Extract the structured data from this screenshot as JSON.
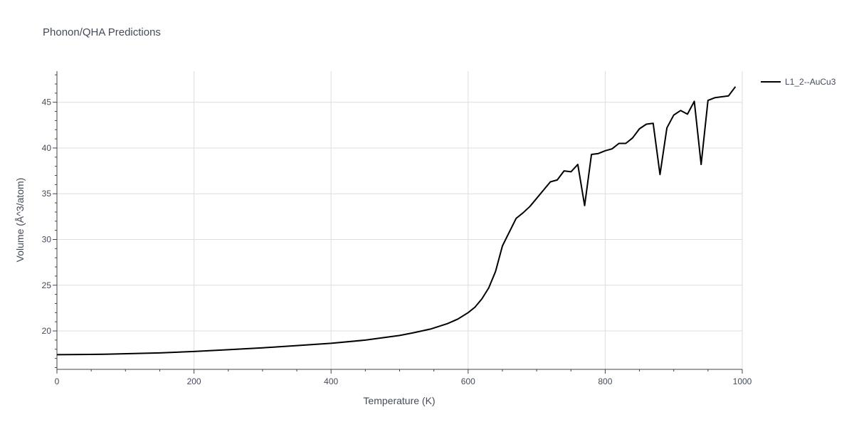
{
  "chart_data": {
    "type": "line",
    "title": "Phonon/QHA Predictions",
    "xlabel": "Temperature (K)",
    "ylabel": "Volume (Å^3/atom)",
    "xlim": [
      0,
      1000
    ],
    "ylim": [
      15.8,
      48.4
    ],
    "x_ticks": [
      0,
      200,
      400,
      600,
      800,
      1000
    ],
    "y_ticks": [
      20,
      25,
      30,
      35,
      40,
      45
    ],
    "x_tick_labels": [
      "0",
      "200",
      "400",
      "600",
      "800",
      "1000"
    ],
    "y_tick_labels": [
      "20",
      "25",
      "30",
      "35",
      "40",
      "45"
    ],
    "grid": true,
    "legend_position": "top-right",
    "series": [
      {
        "name": "L1_2--AuCu3",
        "color": "#000000",
        "x": [
          0,
          70,
          150,
          200,
          250,
          300,
          350,
          400,
          450,
          500,
          520,
          545,
          570,
          585,
          600,
          610,
          620,
          630,
          640,
          650,
          660,
          670,
          680,
          690,
          700,
          710,
          720,
          730,
          740,
          750,
          760,
          770,
          780,
          790,
          800,
          810,
          820,
          830,
          840,
          850,
          860,
          870,
          880,
          890,
          900,
          910,
          920,
          930,
          940,
          950,
          960,
          970,
          980,
          990
        ],
        "y": [
          17.4,
          17.45,
          17.6,
          17.75,
          17.95,
          18.15,
          18.4,
          18.65,
          19.0,
          19.5,
          19.8,
          20.2,
          20.8,
          21.3,
          22.0,
          22.6,
          23.5,
          24.7,
          26.5,
          29.3,
          30.8,
          32.3,
          32.9,
          33.6,
          34.5,
          35.4,
          36.3,
          36.5,
          37.5,
          37.4,
          38.2,
          33.7,
          39.3,
          39.4,
          39.7,
          39.9,
          40.5,
          40.5,
          41.1,
          42.1,
          42.6,
          42.7,
          37.1,
          42.2,
          43.6,
          44.1,
          43.7,
          45.1,
          38.2,
          45.2,
          45.5,
          45.6,
          45.7,
          46.7
        ]
      }
    ]
  }
}
